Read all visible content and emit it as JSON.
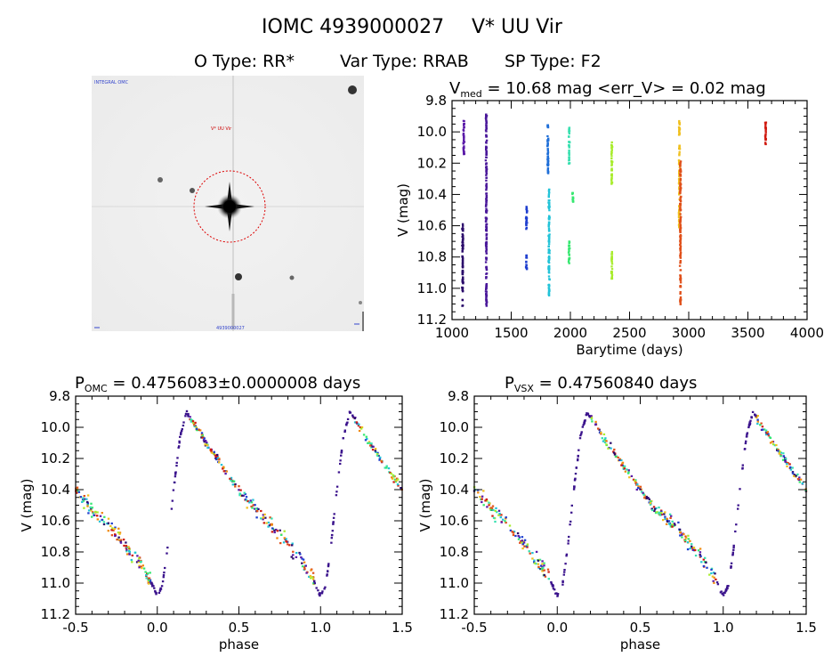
{
  "header": {
    "title_line1_id": "IOMC 4939000027",
    "title_line1_name": "V* UU Vir",
    "title_line2_otype": "O Type: RR*",
    "title_line2_vartype": "Var Type: RRAB",
    "title_line2_sptype": "SP Type: F2"
  },
  "colors": {
    "background": "#ffffff",
    "axes": "#000000",
    "aperture_circle": "#dd0000",
    "palette": [
      "#2a0a6a",
      "#5a1aa8",
      "#1f3fcf",
      "#22c3d8",
      "#38e0b0",
      "#36e870",
      "#a8ec2c",
      "#f0c020",
      "#f08a10",
      "#e0501a",
      "#d01a10"
    ]
  },
  "thumbnail": {
    "corner_label_tl": "INTEGRAL OMC",
    "star_label": "V* UU Vir",
    "bottom_label": "4939000027"
  },
  "chart_data": [
    {
      "type": "scatter",
      "panel": "time-series",
      "title_prefix": "V",
      "title_subscript": "med",
      "title_rest": " = 10.68 mag <err_V> = 0.02 mag",
      "xlabel": "Barytime (days)",
      "ylabel": "V (mag)",
      "xlim": [
        1000,
        4000
      ],
      "ylim": [
        11.2,
        9.8
      ],
      "y_reversed": true,
      "xticks": [
        "1000",
        "1500",
        "2000",
        "2500",
        "3000",
        "3500",
        "4000"
      ],
      "yticks": [
        "9.8",
        "10.0",
        "10.2",
        "10.4",
        "10.6",
        "10.8",
        "11.0",
        "11.2"
      ],
      "epochs": [
        {
          "x": 1090,
          "ymin": 10.56,
          "ymax": 11.12,
          "color": "#2a0a6a"
        },
        {
          "x": 1100,
          "ymin": 9.92,
          "ymax": 10.14,
          "color": "#5a1aa8"
        },
        {
          "x": 1290,
          "ymin": 9.88,
          "ymax": 11.12,
          "color": "#4a189a"
        },
        {
          "x": 1630,
          "ymin": 10.46,
          "ymax": 10.62,
          "color": "#1f3fcf"
        },
        {
          "x": 1630,
          "ymin": 10.78,
          "ymax": 10.88,
          "color": "#1f3fcf"
        },
        {
          "x": 1810,
          "ymin": 9.92,
          "ymax": 10.26,
          "color": "#1f6fd8"
        },
        {
          "x": 1820,
          "ymin": 10.35,
          "ymax": 11.06,
          "color": "#22c3d8"
        },
        {
          "x": 1990,
          "ymin": 9.95,
          "ymax": 10.2,
          "color": "#38e0b0"
        },
        {
          "x": 1990,
          "ymin": 10.68,
          "ymax": 10.84,
          "color": "#36e870"
        },
        {
          "x": 2020,
          "ymin": 10.38,
          "ymax": 10.46,
          "color": "#36e870"
        },
        {
          "x": 2350,
          "ymin": 10.06,
          "ymax": 10.33,
          "color": "#a8ec2c"
        },
        {
          "x": 2350,
          "ymin": 10.76,
          "ymax": 10.94,
          "color": "#a8ec2c"
        },
        {
          "x": 2920,
          "ymin": 9.92,
          "ymax": 10.62,
          "color": "#f0c020"
        },
        {
          "x": 2930,
          "ymin": 10.18,
          "ymax": 11.12,
          "color": "#e0501a"
        },
        {
          "x": 3650,
          "ymin": 9.92,
          "ymax": 10.08,
          "color": "#d01a10"
        }
      ]
    },
    {
      "type": "scatter",
      "panel": "phase-omc",
      "title_prefix": "P",
      "title_subscript": "OMC",
      "title_rest": " = 0.4756083±0.0000008 days",
      "xlabel": "phase",
      "ylabel": "V (mag)",
      "xlim": [
        -0.5,
        1.5
      ],
      "ylim": [
        11.2,
        9.8
      ],
      "y_reversed": true,
      "xticks": [
        "-0.5",
        "0.0",
        "0.5",
        "1.0",
        "1.5"
      ],
      "yticks": [
        "9.8",
        "10.0",
        "10.2",
        "10.4",
        "10.6",
        "10.8",
        "11.0",
        "11.2"
      ],
      "light_curve": [
        [
          0.0,
          11.08
        ],
        [
          0.03,
          11.02
        ],
        [
          0.06,
          10.8
        ],
        [
          0.1,
          10.4
        ],
        [
          0.14,
          10.06
        ],
        [
          0.18,
          9.9
        ],
        [
          0.22,
          9.97
        ],
        [
          0.3,
          10.1
        ],
        [
          0.4,
          10.25
        ],
        [
          0.5,
          10.4
        ],
        [
          0.6,
          10.53
        ],
        [
          0.7,
          10.63
        ],
        [
          0.78,
          10.72
        ],
        [
          0.85,
          10.82
        ],
        [
          0.9,
          10.88
        ],
        [
          0.95,
          10.97
        ],
        [
          1.0,
          11.08
        ]
      ]
    },
    {
      "type": "scatter",
      "panel": "phase-vsx",
      "title_prefix": "P",
      "title_subscript": "VSX",
      "title_rest": " = 0.47560840 days",
      "xlabel": "phase",
      "ylabel": "V (mag)",
      "xlim": [
        -0.5,
        1.5
      ],
      "ylim": [
        11.2,
        9.8
      ],
      "y_reversed": true,
      "xticks": [
        "-0.5",
        "0.0",
        "0.5",
        "1.0",
        "1.5"
      ],
      "yticks": [
        "9.8",
        "10.0",
        "10.2",
        "10.4",
        "10.6",
        "10.8",
        "11.0",
        "11.2"
      ],
      "light_curve": [
        [
          0.0,
          11.08
        ],
        [
          0.03,
          11.02
        ],
        [
          0.06,
          10.8
        ],
        [
          0.1,
          10.4
        ],
        [
          0.14,
          10.06
        ],
        [
          0.18,
          9.9
        ],
        [
          0.22,
          9.97
        ],
        [
          0.3,
          10.1
        ],
        [
          0.4,
          10.25
        ],
        [
          0.5,
          10.4
        ],
        [
          0.6,
          10.53
        ],
        [
          0.7,
          10.63
        ],
        [
          0.78,
          10.72
        ],
        [
          0.85,
          10.82
        ],
        [
          0.9,
          10.88
        ],
        [
          0.95,
          10.97
        ],
        [
          1.0,
          11.08
        ]
      ]
    }
  ]
}
